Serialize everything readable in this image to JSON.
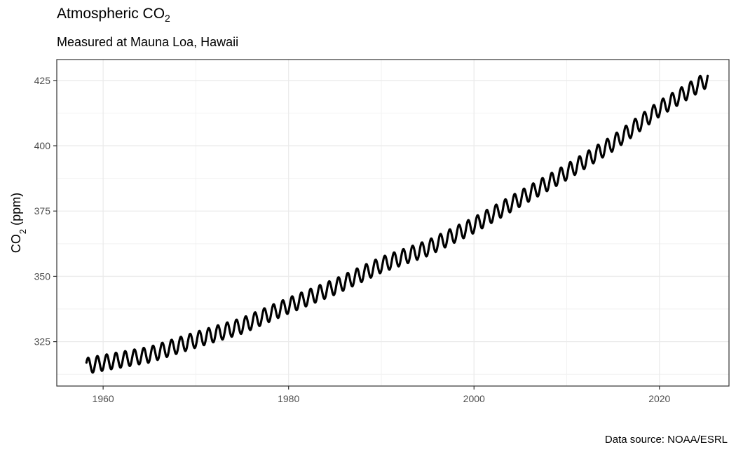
{
  "title": {
    "text": "Atmospheric CO",
    "subscript": "2"
  },
  "subtitle": "Measured at Mauna Loa, Hawaii",
  "caption": "Data source: NOAA/ESRL",
  "chart_data": {
    "type": "line",
    "title": "Atmospheric CO2",
    "subtitle": "Measured at Mauna Loa, Hawaii",
    "xlabel": "",
    "ylabel": "CO2 (ppm)",
    "ylabel_parts": {
      "main": "CO",
      "sub": "2",
      "rest": " (ppm)"
    },
    "xlim": [
      1955,
      2027.5
    ],
    "ylim": [
      308,
      433
    ],
    "x_ticks": [
      1960,
      1980,
      2000,
      2020
    ],
    "y_ticks": [
      325,
      350,
      375,
      400,
      425
    ],
    "grid": true,
    "legend": "none",
    "line_color": "#000000",
    "seasonal_amplitude_ppm": 3,
    "x": [
      1958.2,
      1960,
      1965,
      1970,
      1975,
      1980,
      1985,
      1990,
      1995,
      2000,
      2005,
      2010,
      2015,
      2020,
      2025.2
    ],
    "y": [
      315.7,
      316.9,
      320.0,
      325.7,
      331.1,
      338.8,
      346.0,
      354.4,
      360.8,
      369.6,
      379.8,
      389.9,
      401.0,
      414.2,
      425.5
    ]
  }
}
